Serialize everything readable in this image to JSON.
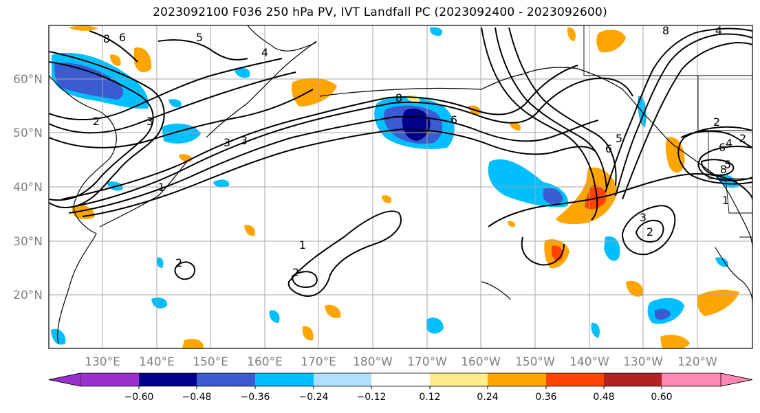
{
  "title": "2023092100 F036 250 hPa PV, IVT Landfall PC (2023092400 - 2023092600)",
  "map": {
    "lat_labels": [
      "60°N",
      "50°N",
      "40°N",
      "30°N",
      "20°N"
    ],
    "lon_labels": [
      "130°E",
      "140°E",
      "150°E",
      "160°E",
      "170°E",
      "180°W",
      "170°W",
      "160°W",
      "150°W",
      "140°W",
      "130°W",
      "120°W"
    ],
    "contour_labels": [
      "8",
      "6",
      "5",
      "3",
      "2",
      "3",
      "4",
      "8",
      "6",
      "2",
      "6",
      "3",
      "5",
      "1",
      "2",
      "1",
      "2",
      "3",
      "2",
      "5",
      "6",
      "8",
      "4",
      "1",
      "2",
      "8",
      "4"
    ]
  },
  "colorbar": {
    "tick_labels": [
      "−0.60",
      "−0.48",
      "−0.36",
      "−0.24",
      "−0.12",
      "0.12",
      "0.24",
      "0.36",
      "0.48",
      "0.60"
    ],
    "colors": [
      "#9932cc",
      "#00008b",
      "#3b5bd0",
      "#00bfff",
      "#b0e0ff",
      "#ffffff",
      "#ffec8b",
      "#ffa500",
      "#ff4500",
      "#b22222",
      "#ff89b4"
    ]
  },
  "colors": {
    "negative_strong": "#3b5bd0",
    "negative_mid": "#00bfff",
    "negative_weak": "#b0e0ff",
    "positive_weak": "#ffec8b",
    "positive_mid": "#ffa500",
    "positive_strong": "#ff4500",
    "negative_extreme": "#00008b"
  }
}
